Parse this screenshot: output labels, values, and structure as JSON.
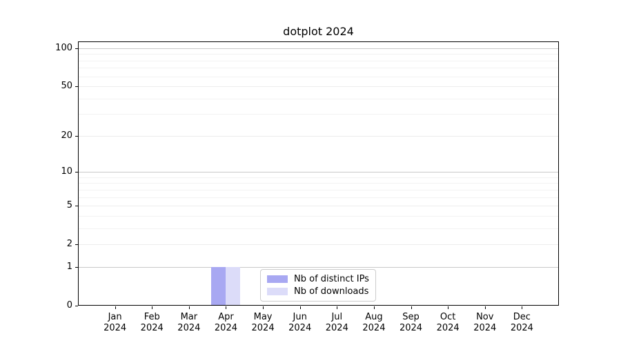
{
  "chart_data": {
    "type": "bar",
    "title": "dotplot 2024",
    "categories": [
      "Jan",
      "Feb",
      "Mar",
      "Apr",
      "May",
      "Jun",
      "Jul",
      "Aug",
      "Sep",
      "Oct",
      "Nov",
      "Dec"
    ],
    "category_year": "2024",
    "series": [
      {
        "name": "Nb of distinct IPs",
        "color": "#a8a8f2",
        "values": [
          0,
          0,
          0,
          1,
          0,
          0,
          0,
          0,
          0,
          0,
          0,
          0
        ]
      },
      {
        "name": "Nb of downloads",
        "color": "#dcdcf9",
        "values": [
          0,
          0,
          0,
          1,
          0,
          0,
          0,
          0,
          0,
          0,
          0,
          0
        ]
      }
    ],
    "yscale": "log1p",
    "ylim": [
      0,
      113
    ],
    "yticks": [
      0,
      1,
      2,
      5,
      10,
      20,
      50,
      100
    ],
    "ytick_labels": [
      "0",
      "1",
      "2",
      "5",
      "10",
      "20",
      "50",
      "100"
    ],
    "minor_yticks": [
      3,
      4,
      6,
      7,
      8,
      9,
      30,
      40,
      60,
      70,
      80,
      90
    ],
    "emphasized_gridlines": [
      1,
      10,
      100
    ],
    "xlabel": "",
    "ylabel": "",
    "grid": true,
    "legend_position": "lower center"
  }
}
